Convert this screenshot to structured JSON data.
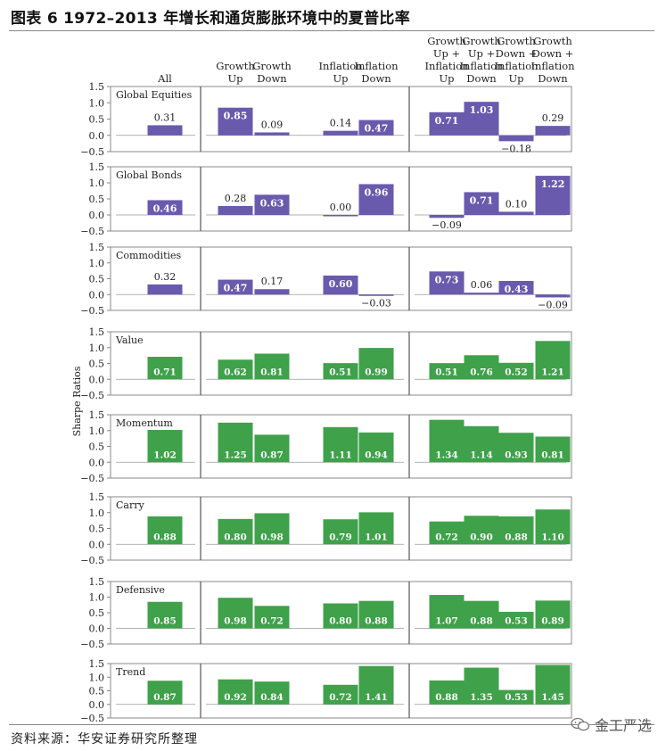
{
  "title": "图表 6 1972–2013 年增长和通货膨胀环境中的夏普比率",
  "source": "资料来源：华安证券研究所整理",
  "brand": "金工严选",
  "chart_data": {
    "type": "bar",
    "ylabel": "Sharpe Ratios",
    "ylim": [
      -0.5,
      1.5
    ],
    "yticks": [
      "1.5",
      "1.0",
      "0.5",
      "0.0",
      "−0.5"
    ],
    "ytick_values": [
      1.5,
      1.0,
      0.5,
      0.0,
      -0.5
    ],
    "colors": {
      "purple": "#6a5aad",
      "green": "#3fa14a"
    },
    "columns": [
      {
        "key": "all",
        "lines": [
          "All"
        ]
      },
      {
        "key": "gu",
        "lines": [
          "Growth",
          "Up"
        ]
      },
      {
        "key": "gd",
        "lines": [
          "Growth",
          "Down"
        ]
      },
      {
        "key": "iu",
        "lines": [
          "Inflation",
          "Up"
        ]
      },
      {
        "key": "id",
        "lines": [
          "Inflation",
          "Down"
        ]
      },
      {
        "key": "guiu",
        "lines": [
          "Growth",
          "Up +",
          "Inflation",
          "Up"
        ]
      },
      {
        "key": "guid",
        "lines": [
          "Growth",
          "Up +",
          "Inflation",
          "Down"
        ]
      },
      {
        "key": "gdiu",
        "lines": [
          "Growth",
          "Down +",
          "Inflation",
          "Up"
        ]
      },
      {
        "key": "gdid",
        "lines": [
          "Growth",
          "Down +",
          "Inflation",
          "Down"
        ]
      }
    ],
    "panels": [
      {
        "name": "Global Equities",
        "color": "purple",
        "values": [
          0.31,
          0.85,
          0.09,
          0.14,
          0.47,
          0.71,
          1.03,
          -0.18,
          0.29
        ],
        "labels": [
          "0.31",
          "0.85",
          "0.09",
          "0.14",
          "0.47",
          "0.71",
          "1.03",
          "−0.18",
          "0.29"
        ]
      },
      {
        "name": "Global  Bonds",
        "color": "purple",
        "values": [
          0.46,
          0.28,
          0.63,
          0.0,
          0.96,
          -0.09,
          0.71,
          0.1,
          1.22
        ],
        "labels": [
          "0.46",
          "0.28",
          "0.63",
          "0.00",
          "0.96",
          "−0.09",
          "0.71",
          "0.10",
          "1.22"
        ]
      },
      {
        "name": "Commodities",
        "color": "purple",
        "values": [
          0.32,
          0.47,
          0.17,
          0.6,
          -0.03,
          0.73,
          0.06,
          0.43,
          -0.09
        ],
        "labels": [
          "0.32",
          "0.47",
          "0.17",
          "0.60",
          "−0.03",
          "0.73",
          "0.06",
          "0.43",
          "−0.09"
        ]
      },
      {
        "name": "Value",
        "color": "green",
        "values": [
          0.71,
          0.62,
          0.81,
          0.51,
          0.99,
          0.51,
          0.76,
          0.52,
          1.21
        ],
        "labels": [
          "0.71",
          "0.62",
          "0.81",
          "0.51",
          "0.99",
          "0.51",
          "0.76",
          "0.52",
          "1.21"
        ]
      },
      {
        "name": "Momentum",
        "color": "green",
        "values": [
          1.02,
          1.25,
          0.87,
          1.11,
          0.94,
          1.34,
          1.14,
          0.93,
          0.81
        ],
        "labels": [
          "1.02",
          "1.25",
          "0.87",
          "1.11",
          "0.94",
          "1.34",
          "1.14",
          "0.93",
          "0.81"
        ]
      },
      {
        "name": "Carry",
        "color": "green",
        "values": [
          0.88,
          0.8,
          0.98,
          0.79,
          1.01,
          0.72,
          0.9,
          0.88,
          1.1
        ],
        "labels": [
          "0.88",
          "0.80",
          "0.98",
          "0.79",
          "1.01",
          "0.72",
          "0.90",
          "0.88",
          "1.10"
        ]
      },
      {
        "name": "Defensive",
        "color": "green",
        "values": [
          0.85,
          0.98,
          0.72,
          0.8,
          0.88,
          1.07,
          0.88,
          0.53,
          0.89
        ],
        "labels": [
          "0.85",
          "0.98",
          "0.72",
          "0.80",
          "0.88",
          "1.07",
          "0.88",
          "0.53",
          "0.89"
        ]
      },
      {
        "name": "Trend",
        "color": "green",
        "values": [
          0.87,
          0.92,
          0.84,
          0.72,
          1.41,
          0.88,
          1.35,
          0.53,
          1.45
        ],
        "labels": [
          "0.87",
          "0.92",
          "0.84",
          "0.72",
          "1.41",
          "0.88",
          "1.35",
          "0.53",
          "1.45"
        ]
      }
    ]
  }
}
